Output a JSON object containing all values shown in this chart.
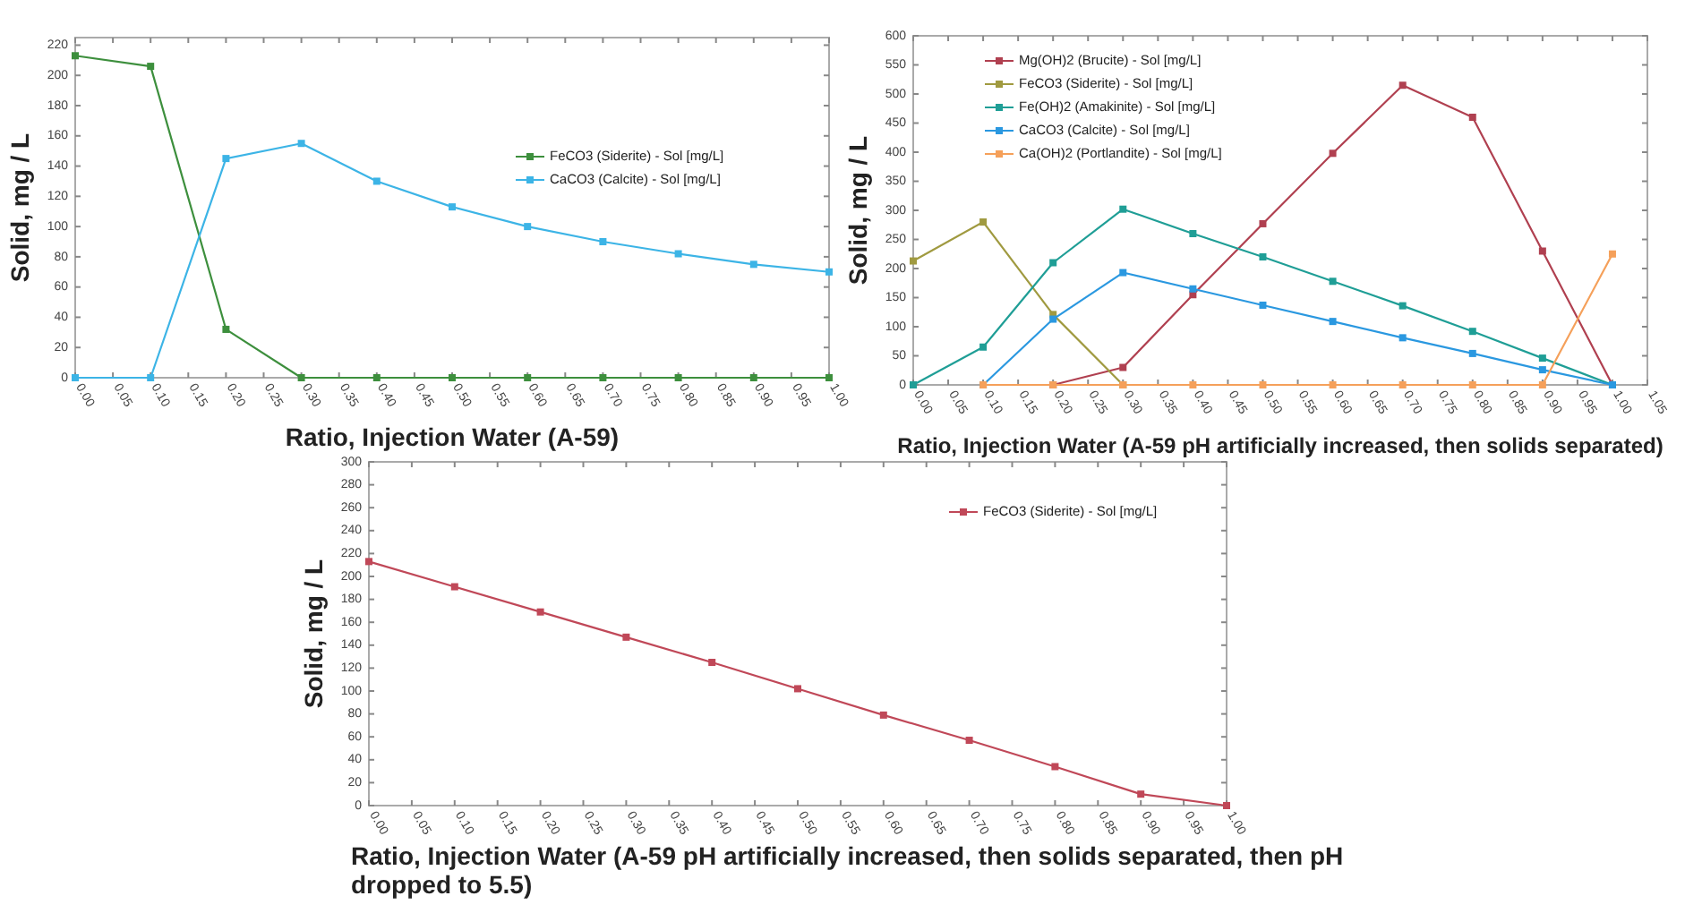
{
  "chart_data": [
    {
      "type": "line",
      "xlabel": "Ratio, Injection Water (A-59)",
      "ylabel": "Solid, mg / L",
      "x": [
        0,
        0.1,
        0.2,
        0.3,
        0.4,
        0.5,
        0.6,
        0.7,
        0.8,
        0.9,
        1.0
      ],
      "xlim": [
        0,
        1
      ],
      "ylim": [
        0,
        225
      ],
      "xticks": [
        {
          "value": 0,
          "label": "0.00"
        },
        {
          "value": 0.05,
          "label": "0.05"
        },
        {
          "value": 0.1,
          "label": "0.10"
        },
        {
          "value": 0.15,
          "label": "0.15"
        },
        {
          "value": 0.2,
          "label": "0.20"
        },
        {
          "value": 0.25,
          "label": "0.25"
        },
        {
          "value": 0.3,
          "label": "0.30"
        },
        {
          "value": 0.35,
          "label": "0.35"
        },
        {
          "value": 0.4,
          "label": "0.40"
        },
        {
          "value": 0.45,
          "label": "0.45"
        },
        {
          "value": 0.5,
          "label": "0.50"
        },
        {
          "value": 0.55,
          "label": "0.55"
        },
        {
          "value": 0.6,
          "label": "0.60"
        },
        {
          "value": 0.65,
          "label": "0.65"
        },
        {
          "value": 0.7,
          "label": "0.70"
        },
        {
          "value": 0.75,
          "label": "0.75"
        },
        {
          "value": 0.8,
          "label": "0.80"
        },
        {
          "value": 0.85,
          "label": "0.85"
        },
        {
          "value": 0.9,
          "label": "0.90"
        },
        {
          "value": 0.95,
          "label": "0.95"
        },
        {
          "value": 1.0,
          "label": "1.00"
        }
      ],
      "yticks": [
        0,
        20,
        40,
        60,
        80,
        100,
        120,
        140,
        160,
        180,
        200,
        220
      ],
      "marker": "square",
      "line_style": "solid",
      "grid": false,
      "legend": "right",
      "series": [
        {
          "name": "FeCO3 (Siderite) - Sol [mg/L]",
          "color": "#3d8f3d",
          "values": [
            213,
            206,
            32,
            0,
            0,
            0,
            0,
            0,
            0,
            0,
            0
          ]
        },
        {
          "name": "CaCO3 (Calcite) - Sol [mg/L]",
          "color": "#3cb4e6",
          "values": [
            0,
            0,
            145,
            155,
            130,
            113,
            100,
            90,
            82,
            75,
            70
          ]
        }
      ]
    },
    {
      "type": "line",
      "xlabel": "Ratio, Injection Water (A-59 pH artificially increased, then solids separated)",
      "ylabel": "Solid, mg / L",
      "x": [
        0,
        0.1,
        0.2,
        0.3,
        0.4,
        0.5,
        0.6,
        0.7,
        0.8,
        0.9,
        1.0
      ],
      "xlim": [
        0,
        1.05
      ],
      "ylim": [
        0,
        600
      ],
      "xticks": [
        {
          "value": 0,
          "label": "0.00"
        },
        {
          "value": 0.05,
          "label": "0.05"
        },
        {
          "value": 0.1,
          "label": "0.10"
        },
        {
          "value": 0.15,
          "label": "0.15"
        },
        {
          "value": 0.2,
          "label": "0.20"
        },
        {
          "value": 0.25,
          "label": "0.25"
        },
        {
          "value": 0.3,
          "label": "0.30"
        },
        {
          "value": 0.35,
          "label": "0.35"
        },
        {
          "value": 0.4,
          "label": "0.40"
        },
        {
          "value": 0.45,
          "label": "0.45"
        },
        {
          "value": 0.5,
          "label": "0.50"
        },
        {
          "value": 0.55,
          "label": "0.55"
        },
        {
          "value": 0.6,
          "label": "0.60"
        },
        {
          "value": 0.65,
          "label": "0.65"
        },
        {
          "value": 0.7,
          "label": "0.70"
        },
        {
          "value": 0.75,
          "label": "0.75"
        },
        {
          "value": 0.8,
          "label": "0.80"
        },
        {
          "value": 0.85,
          "label": "0.85"
        },
        {
          "value": 0.9,
          "label": "0.90"
        },
        {
          "value": 0.95,
          "label": "0.95"
        },
        {
          "value": 1.0,
          "label": "1.00"
        },
        {
          "value": 1.05,
          "label": "1.05"
        }
      ],
      "yticks": [
        0,
        50,
        100,
        150,
        200,
        250,
        300,
        350,
        400,
        450,
        500,
        550,
        600
      ],
      "marker": "square",
      "line_style": "solid",
      "grid": false,
      "legend": "top left",
      "series": [
        {
          "name": "Mg(OH)2 (Brucite) - Sol [mg/L]",
          "color": "#b04050",
          "values": [
            null,
            null,
            0,
            30,
            155,
            277,
            398,
            515,
            460,
            230,
            0
          ]
        },
        {
          "name": "FeCO3 (Siderite) - Sol [mg/L]",
          "color": "#a09a40",
          "values": [
            213,
            280,
            121,
            0,
            null,
            null,
            null,
            null,
            null,
            null,
            null
          ]
        },
        {
          "name": "Fe(OH)2 (Amakinite) - Sol [mg/L]",
          "color": "#1f9e96",
          "values": [
            0,
            65,
            210,
            302,
            260,
            220,
            178,
            136,
            92,
            46,
            0
          ]
        },
        {
          "name": "CaCO3 (Calcite) - Sol [mg/L]",
          "color": "#2a98e0",
          "values": [
            null,
            0,
            113,
            193,
            165,
            137,
            109,
            81,
            54,
            26,
            0
          ]
        },
        {
          "name": "Ca(OH)2 (Portlandite) - Sol [mg/L]",
          "color": "#f5a05a",
          "values": [
            null,
            0,
            0,
            0,
            0,
            0,
            0,
            0,
            0,
            0,
            225
          ]
        }
      ]
    },
    {
      "type": "line",
      "xlabel": "Ratio, Injection Water (A-59 pH artificially increased, then solids separated, then pH dropped to 5.5)",
      "ylabel": "Solid, mg / L",
      "x": [
        0,
        0.1,
        0.2,
        0.3,
        0.4,
        0.5,
        0.6,
        0.7,
        0.8,
        0.9,
        1.0
      ],
      "xlim": [
        0,
        1
      ],
      "ylim": [
        0,
        300
      ],
      "xticks": [
        {
          "value": 0,
          "label": "0.00"
        },
        {
          "value": 0.05,
          "label": "0.05"
        },
        {
          "value": 0.1,
          "label": "0.10"
        },
        {
          "value": 0.15,
          "label": "0.15"
        },
        {
          "value": 0.2,
          "label": "0.20"
        },
        {
          "value": 0.25,
          "label": "0.25"
        },
        {
          "value": 0.3,
          "label": "0.30"
        },
        {
          "value": 0.35,
          "label": "0.35"
        },
        {
          "value": 0.4,
          "label": "0.40"
        },
        {
          "value": 0.45,
          "label": "0.45"
        },
        {
          "value": 0.5,
          "label": "0.50"
        },
        {
          "value": 0.55,
          "label": "0.55"
        },
        {
          "value": 0.6,
          "label": "0.60"
        },
        {
          "value": 0.65,
          "label": "0.65"
        },
        {
          "value": 0.7,
          "label": "0.70"
        },
        {
          "value": 0.75,
          "label": "0.75"
        },
        {
          "value": 0.8,
          "label": "0.80"
        },
        {
          "value": 0.85,
          "label": "0.85"
        },
        {
          "value": 0.9,
          "label": "0.90"
        },
        {
          "value": 0.95,
          "label": "0.95"
        },
        {
          "value": 1.0,
          "label": "1.00"
        }
      ],
      "yticks": [
        0,
        20,
        40,
        60,
        80,
        100,
        120,
        140,
        160,
        180,
        200,
        220,
        240,
        260,
        280,
        300
      ],
      "marker": "square",
      "line_style": "solid",
      "grid": false,
      "legend": "top right",
      "series": [
        {
          "name": "FeCO3 (Siderite) - Sol [mg/L]",
          "color": "#c04858",
          "values": [
            213,
            191,
            169,
            147,
            125,
            102,
            79,
            57,
            34,
            10,
            0
          ]
        }
      ]
    }
  ]
}
